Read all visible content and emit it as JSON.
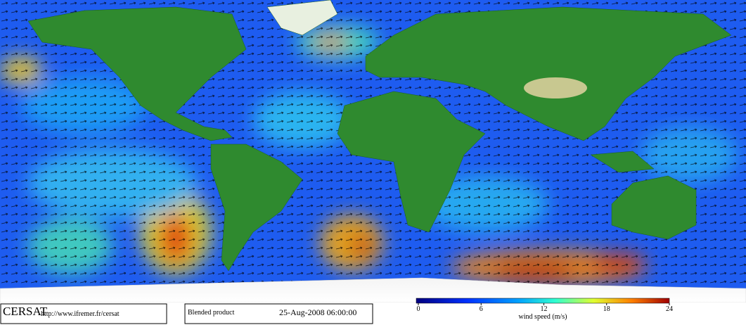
{
  "footer": {
    "logo": "CERSAT",
    "url": "http://www.ifremer.fr/cersat",
    "product": "Blended product",
    "date": "25-Aug-2008 06:00:00"
  },
  "colorbar": {
    "label": "wind speed (m/s)",
    "lim": [
      0,
      24
    ],
    "ticks": [
      0,
      6,
      12,
      18,
      24
    ]
  }
}
